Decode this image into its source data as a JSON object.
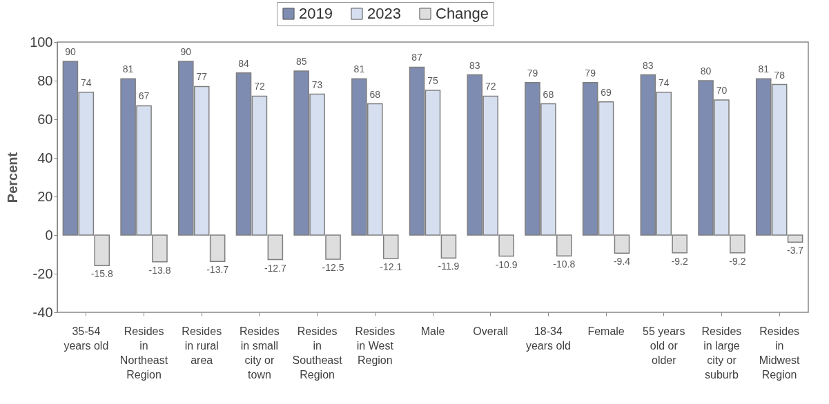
{
  "chart_data": {
    "type": "bar",
    "ylabel": "Percent",
    "categories": [
      "35-54 years old",
      "Resides in Northeast Region",
      "Resides in rural area",
      "Resides in small city or town",
      "Resides in Southeast Region",
      "Resides in West Region",
      "Male",
      "Overall",
      "18-34 years old",
      "Female",
      "55 years old or older",
      "Resides in large city or suburb",
      "Resides in Midwest Region"
    ],
    "series": [
      {
        "name": "2019",
        "color": "#7f8cb1",
        "values": [
          90,
          81,
          90,
          84,
          85,
          81,
          87,
          83,
          79,
          79,
          83,
          80,
          81
        ]
      },
      {
        "name": "2023",
        "color": "#d6dfef",
        "values": [
          74,
          67,
          77,
          72,
          73,
          68,
          75,
          72,
          68,
          69,
          74,
          70,
          78
        ]
      },
      {
        "name": "Change",
        "color": "#dedede",
        "values": [
          -15.8,
          -13.8,
          -13.7,
          -12.7,
          -12.5,
          -12.1,
          -11.9,
          -10.9,
          -10.8,
          -9.4,
          -9.2,
          -9.2,
          -3.7
        ]
      }
    ],
    "ylim": [
      -40,
      100
    ],
    "yticks": [
      -40,
      -20,
      0,
      20,
      40,
      60,
      80,
      100
    ],
    "grid": false,
    "legend": "top",
    "data_labels": true
  }
}
